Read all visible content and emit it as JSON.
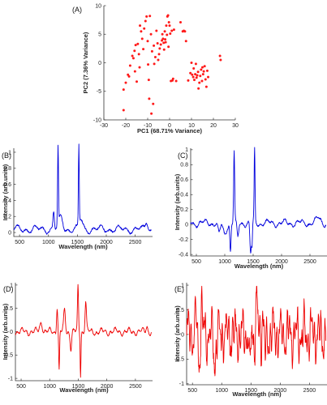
{
  "chart_data": [
    {
      "panel": "(A)",
      "type": "scatter",
      "xlabel": "PC1 (68.71% Variance)",
      "ylabel": "PC2 (7.36% Variance)",
      "xlim": [
        -30,
        30
      ],
      "ylim": [
        -10,
        10
      ],
      "xticks": [
        -30,
        -20,
        -10,
        0,
        10,
        20,
        30
      ],
      "yticks": [
        -10,
        -5,
        0,
        5,
        10
      ],
      "color": "#ff1a1a",
      "points": [
        [
          -21,
          -8.3
        ],
        [
          -21,
          -4.7
        ],
        [
          -20,
          -3.5
        ],
        [
          -19,
          -2.1
        ],
        [
          -18.5,
          -2.4
        ],
        [
          -18,
          -0.5
        ],
        [
          -17,
          1.2
        ],
        [
          -16.5,
          0.8
        ],
        [
          -16,
          2.1
        ],
        [
          -15.5,
          3.1
        ],
        [
          -15.8,
          -1.5
        ],
        [
          -15,
          -3.3
        ],
        [
          -14.5,
          3.3
        ],
        [
          -14,
          1.5
        ],
        [
          -13.7,
          -0.8
        ],
        [
          -13.5,
          6.5
        ],
        [
          -13,
          5.5
        ],
        [
          -12.5,
          4.2
        ],
        [
          -12,
          2.4
        ],
        [
          -11.6,
          6.0
        ],
        [
          -11,
          7.3
        ],
        [
          -10.5,
          8.1
        ],
        [
          -10,
          3.8
        ],
        [
          -9.8,
          -0.3
        ],
        [
          -9.5,
          -3.0
        ],
        [
          -9.3,
          -6.3
        ],
        [
          -9,
          8.2
        ],
        [
          -8.5,
          5.0
        ],
        [
          -8.3,
          -8.9
        ],
        [
          -8,
          2.0
        ],
        [
          -7.5,
          -7.2
        ],
        [
          -7.2,
          3.0
        ],
        [
          -7,
          -0.2
        ],
        [
          -6.5,
          1.0
        ],
        [
          -6,
          5.6
        ],
        [
          -5.5,
          3.4
        ],
        [
          -5.2,
          0.5
        ],
        [
          -4.8,
          1.5
        ],
        [
          -4.5,
          2.5
        ],
        [
          -4,
          3.2
        ],
        [
          -3.5,
          3.9
        ],
        [
          -3.3,
          5.0
        ],
        [
          -3,
          4.2
        ],
        [
          -2.7,
          3.5
        ],
        [
          -2.5,
          2.3
        ],
        [
          -2.2,
          5.5
        ],
        [
          -2,
          4.1
        ],
        [
          -1.8,
          3.6
        ],
        [
          -1.5,
          6.5
        ],
        [
          -1.2,
          4.9
        ],
        [
          -1,
          8.1
        ],
        [
          -0.7,
          8.3
        ],
        [
          -0.5,
          2.8
        ],
        [
          -0.3,
          7.1
        ],
        [
          0,
          6.5
        ],
        [
          0.3,
          5.1
        ],
        [
          0.6,
          -3.2
        ],
        [
          1,
          5.6
        ],
        [
          1.3,
          -3.1
        ],
        [
          1.6,
          -2.8
        ],
        [
          2,
          5.8
        ],
        [
          3,
          -3.2
        ],
        [
          5,
          7.1
        ],
        [
          6,
          5.5
        ],
        [
          6.5,
          5.6
        ],
        [
          7,
          5.5
        ],
        [
          7.5,
          3.8
        ],
        [
          8.5,
          -3.1
        ],
        [
          9.5,
          -1.8
        ],
        [
          10,
          0.0
        ],
        [
          10.3,
          -2.1
        ],
        [
          10.8,
          -2.5
        ],
        [
          11,
          -1.0
        ],
        [
          11.3,
          -3.0
        ],
        [
          11.7,
          -2.0
        ],
        [
          12,
          -0.2
        ],
        [
          12.3,
          -2.6
        ],
        [
          12.6,
          -2.2
        ],
        [
          13,
          -1.6
        ],
        [
          13.2,
          -4.5
        ],
        [
          13.6,
          -3.5
        ],
        [
          14,
          -2.3
        ],
        [
          14.4,
          -1.2
        ],
        [
          14.8,
          -3.2
        ],
        [
          15,
          -0.8
        ],
        [
          15.3,
          -2.0
        ],
        [
          15.6,
          -1.5
        ],
        [
          16,
          -0.6
        ],
        [
          16.4,
          -2.9
        ],
        [
          16.8,
          -4.2
        ],
        [
          17.2,
          -1.4
        ],
        [
          17.6,
          -2.5
        ],
        [
          23,
          1.2
        ],
        [
          23.3,
          0.5
        ]
      ]
    },
    {
      "panel": "(B)",
      "type": "line",
      "xlabel": "Wavelength (nm)",
      "ylabel": "Intensity (arb.units)",
      "xlim": [
        400,
        2800
      ],
      "ylim": [
        -0.05,
        1.05
      ],
      "xticks": [
        500,
        1000,
        1500,
        2000,
        2500
      ],
      "yticks": [
        0,
        0.2,
        0.4,
        0.6,
        0.8,
        1
      ],
      "color": "#0000dd"
    },
    {
      "panel": "(C)",
      "type": "line",
      "xlabel": "Wavelength (nm)",
      "ylabel": "Intensity (arb.units)",
      "xlim": [
        400,
        2800
      ],
      "ylim": [
        -0.42,
        1.02
      ],
      "xticks": [
        500,
        1000,
        1500,
        2000,
        2500
      ],
      "yticks": [
        -0.4,
        -0.2,
        0,
        0.2,
        0.4,
        0.6,
        0.8,
        1
      ],
      "color": "#0000dd"
    },
    {
      "panel": "(D)",
      "type": "line",
      "xlabel": "Wavelength (nm)",
      "ylabel": "Intensity (arb.units)",
      "xlim": [
        400,
        2800
      ],
      "ylim": [
        -1.05,
        1.05
      ],
      "xticks": [
        500,
        1000,
        1500,
        2000,
        2500
      ],
      "yticks": [
        -1,
        -0.5,
        0,
        0.5,
        1
      ],
      "color": "#ee0000"
    },
    {
      "panel": "(E)",
      "type": "line",
      "xlabel": "Wavelength (nm)",
      "ylabel": "Intensity (arb.units)",
      "xlim": [
        400,
        2800
      ],
      "ylim": [
        -1.02,
        1.05
      ],
      "xticks": [
        500,
        1000,
        1500,
        2000,
        2500
      ],
      "yticks": [
        -1,
        -0.5,
        0,
        0.5,
        1
      ],
      "color": "#ee0000"
    }
  ]
}
